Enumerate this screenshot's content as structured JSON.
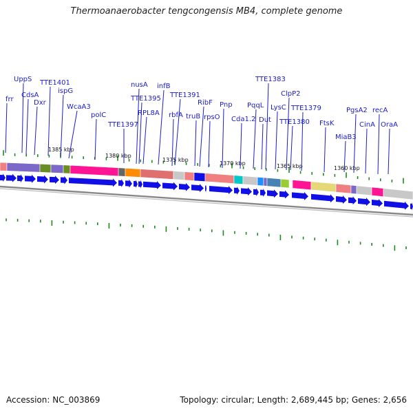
{
  "title": "Thermoanaerobacter tengcongensis MB4, complete genome",
  "accession": "Accession: NC_003869",
  "summary": "Topology: circular; Length: 2,689,445 bp; Genes: 2,656",
  "colors": {
    "label": "#1a1acc",
    "forward_gene": "#1010e6",
    "tick": "#1a8a1a",
    "backbone": "#888888"
  },
  "kbp_marks": [
    "1385 kbp",
    "1380 kbp",
    "1375 kbp",
    "1370 kbp",
    "1365 kbp",
    "1360 kbp"
  ],
  "gene_labels": [
    "frr",
    "UppS",
    "CdsA",
    "Dxr",
    "TTE1401",
    "ispG",
    "WcaA3",
    "polC",
    "TTE1397",
    "nusA",
    "TTE1395",
    "RPL8A",
    "infB",
    "TTE1391",
    "rbfA",
    "truB",
    "RibF",
    "rpsO",
    "Pnp",
    "Cda1.2",
    "PqqL",
    "TTE1383",
    "Dut",
    "LysC",
    "ClpP2",
    "TTE1380",
    "TTE1379",
    "FtsK",
    "MiaB3",
    "PgsA2",
    "CinA",
    "recA",
    "OraA"
  ]
}
